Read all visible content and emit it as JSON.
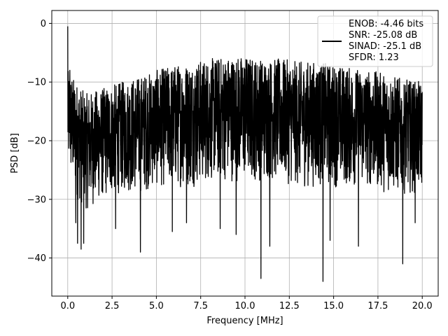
{
  "chart_data": {
    "type": "line",
    "xlabel": "Frequency [MHz]",
    "ylabel": "PSD [dB]",
    "xlim": [
      -0.9,
      20.9
    ],
    "ylim": [
      -46.5,
      2.2
    ],
    "xticks": [
      0.0,
      2.5,
      5.0,
      7.5,
      10.0,
      12.5,
      15.0,
      17.5,
      20.0
    ],
    "xtick_labels": [
      "0.0",
      "2.5",
      "5.0",
      "7.5",
      "10.0",
      "12.5",
      "15.0",
      "17.5",
      "20.0"
    ],
    "yticks": [
      0,
      -10,
      -20,
      -30,
      -40
    ],
    "ytick_labels": [
      "0",
      "−10",
      "−20",
      "−30",
      "−40"
    ],
    "grid": true,
    "legend_position": "top-right",
    "series": [
      {
        "name": "ENOB: -4.46 bits\nSNR: -25.08 dB\nSINAD: -25.1 dB\nSFDR: 1.23",
        "color": "#000000",
        "noise_floor_x": [
          0,
          0.5,
          1,
          2,
          3,
          4,
          5,
          6,
          7,
          8,
          9,
          10,
          11,
          12,
          13,
          14,
          15,
          16,
          17,
          18,
          19,
          20
        ],
        "noise_floor_upper": [
          -8,
          -10,
          -12,
          -11,
          -10,
          -9,
          -8,
          -7,
          -6.5,
          -6,
          -5.5,
          -5.5,
          -6,
          -6,
          -6.5,
          -6.5,
          -7,
          -7.5,
          -8,
          -8.5,
          -9.5,
          -10
        ],
        "noise_floor_lower": [
          -25,
          -30,
          -32,
          -30,
          -29,
          -29,
          -28,
          -28,
          -28,
          -27,
          -27,
          -27,
          -27,
          -27,
          -28,
          -28,
          -28,
          -28,
          -28,
          -29,
          -29,
          -29
        ],
        "peaks": [
          {
            "x": 0.0,
            "y": -0.5
          },
          {
            "x": 0.07,
            "y": -18
          },
          {
            "x": 0.12,
            "y": -8
          },
          {
            "x": 0.24,
            "y": -10
          }
        ],
        "dips": [
          {
            "x": 0.45,
            "y": -34
          },
          {
            "x": 0.55,
            "y": -37.5
          },
          {
            "x": 0.75,
            "y": -38.5
          },
          {
            "x": 0.9,
            "y": -37.5
          },
          {
            "x": 2.7,
            "y": -35
          },
          {
            "x": 4.1,
            "y": -39
          },
          {
            "x": 5.9,
            "y": -35.5
          },
          {
            "x": 6.7,
            "y": -34
          },
          {
            "x": 8.6,
            "y": -35
          },
          {
            "x": 9.5,
            "y": -36
          },
          {
            "x": 10.9,
            "y": -43.5
          },
          {
            "x": 11.4,
            "y": -38
          },
          {
            "x": 14.4,
            "y": -44
          },
          {
            "x": 14.8,
            "y": -37
          },
          {
            "x": 16.4,
            "y": -38
          },
          {
            "x": 18.9,
            "y": -41
          },
          {
            "x": 19.6,
            "y": -34
          }
        ]
      }
    ]
  }
}
